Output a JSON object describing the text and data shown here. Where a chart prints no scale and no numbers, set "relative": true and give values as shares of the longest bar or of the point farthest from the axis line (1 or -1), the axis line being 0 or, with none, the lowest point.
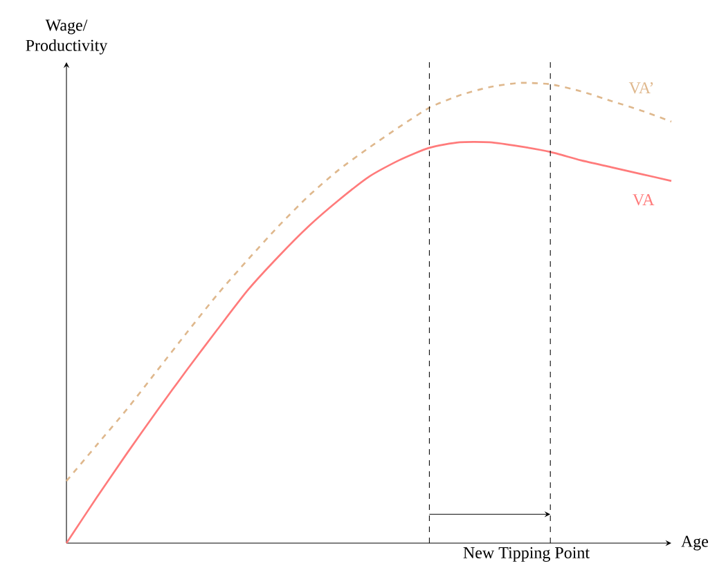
{
  "chart_data": {
    "type": "line",
    "relative": true,
    "xlabel": "Age",
    "ylabel": "Wage/ Productivity",
    "legend": false,
    "marker": "none",
    "categories": [
      null,
      null,
      null,
      null,
      null,
      null,
      null,
      null,
      null,
      null,
      null,
      null,
      null,
      null,
      null,
      null,
      null,
      null,
      null,
      null,
      null
    ],
    "series": [
      {
        "name": "VA",
        "color": "#ff7b7b",
        "line_style": "solid",
        "values": [
          0,
          0.099,
          0.195,
          0.288,
          0.378,
          0.465,
          0.55,
          0.622,
          0.688,
          0.745,
          0.796,
          0.832,
          0.859,
          0.871,
          0.871,
          0.862,
          0.85,
          0.832,
          0.817,
          0.802,
          0.787
        ]
      },
      {
        "name": "VA’",
        "color": "#dfb88d",
        "line_style": "dashed",
        "values": [
          0.135,
          0.213,
          0.291,
          0.375,
          0.459,
          0.541,
          0.616,
          0.688,
          0.754,
          0.811,
          0.859,
          0.904,
          0.946,
          0.973,
          0.991,
          1.0,
          0.997,
          0.982,
          0.961,
          0.94,
          0.916
        ]
      }
    ],
    "annotations": [
      "New Tipping Point"
    ]
  }
}
